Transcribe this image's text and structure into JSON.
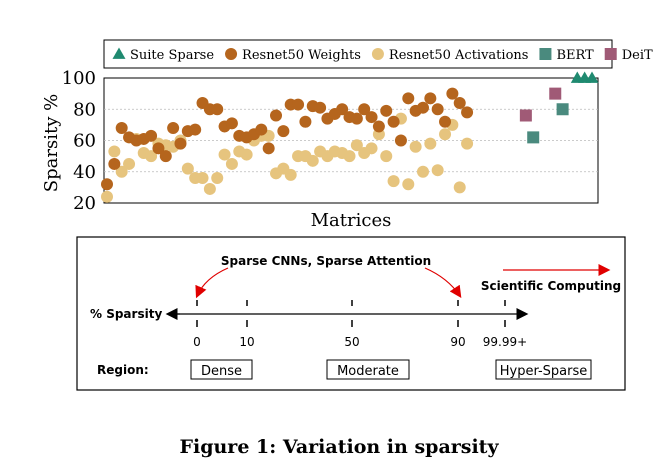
{
  "chart_data": {
    "type": "scatter",
    "title": "",
    "xlabel": "Matrices",
    "ylabel": "Sparsity %",
    "ylim": [
      20,
      100
    ],
    "yticks": [
      20,
      40,
      60,
      80,
      100
    ],
    "grid": true,
    "legend_position": "top",
    "series": [
      {
        "name": "Suite Sparse",
        "marker": "triangle",
        "color": "#1f8a70",
        "x": [
          65,
          66,
          67
        ],
        "y": [
          100,
          100,
          100
        ]
      },
      {
        "name": "Resnet50 Weights",
        "marker": "circle",
        "color": "#b5651d",
        "x": [
          1,
          2,
          3,
          4,
          5,
          6,
          7,
          8,
          9,
          10,
          11,
          12,
          13,
          14,
          15,
          16,
          17,
          18,
          19,
          20,
          21,
          22,
          23,
          24,
          25,
          26,
          27,
          28,
          29,
          30,
          31,
          32,
          33,
          34,
          35,
          36,
          37,
          38,
          39,
          40,
          41,
          42,
          43,
          44,
          45,
          46,
          47,
          48,
          49,
          50
        ],
        "y": [
          32,
          45,
          68,
          62,
          60,
          61,
          63,
          55,
          50,
          68,
          58,
          66,
          67,
          84,
          80,
          80,
          69,
          71,
          63,
          62,
          64,
          67,
          55,
          76,
          66,
          83,
          83,
          72,
          82,
          81,
          74,
          77,
          80,
          75,
          74,
          80,
          75,
          69,
          79,
          72,
          60,
          87,
          79,
          81,
          87,
          80,
          72,
          90,
          84,
          78
        ]
      },
      {
        "name": "Resnet50 Activations",
        "marker": "circle",
        "color": "#e6c47e",
        "x": [
          1,
          2,
          3,
          4,
          5,
          6,
          7,
          8,
          9,
          10,
          11,
          12,
          13,
          14,
          15,
          16,
          17,
          18,
          19,
          20,
          21,
          22,
          23,
          24,
          25,
          26,
          27,
          28,
          29,
          30,
          31,
          32,
          33,
          34,
          35,
          36,
          37,
          38,
          39,
          40,
          41,
          42,
          43,
          44,
          45,
          46,
          47,
          48,
          49,
          50
        ],
        "y": [
          24,
          53,
          40,
          45,
          61,
          52,
          50,
          58,
          57,
          56,
          60,
          42,
          36,
          36,
          29,
          36,
          51,
          45,
          53,
          51,
          60,
          63,
          63,
          39,
          42,
          38,
          50,
          50,
          47,
          53,
          50,
          53,
          52,
          50,
          57,
          52,
          55,
          64,
          50,
          34,
          74,
          32,
          56,
          40,
          58,
          41,
          64,
          70,
          30,
          58
        ]
      },
      {
        "name": "BERT",
        "marker": "square",
        "color": "#4a8a7e",
        "x": [
          59,
          63
        ],
        "y": [
          62,
          80
        ]
      },
      {
        "name": "DeiT",
        "marker": "square",
        "color": "#a05a76",
        "x": [
          58,
          62
        ],
        "y": [
          76,
          90
        ]
      }
    ]
  },
  "diagram": {
    "top_label": "Sparse CNNs, Sparse Attention",
    "right_label": "Scientific Computing",
    "axis_label": "% Sparsity",
    "ticks": [
      "0",
      "10",
      "50",
      "90",
      "99.99+"
    ],
    "region_label": "Region:",
    "regions": [
      "Dense",
      "Moderate",
      "Hyper-Sparse"
    ]
  },
  "caption": "Figure 1: Variation in sparsity"
}
